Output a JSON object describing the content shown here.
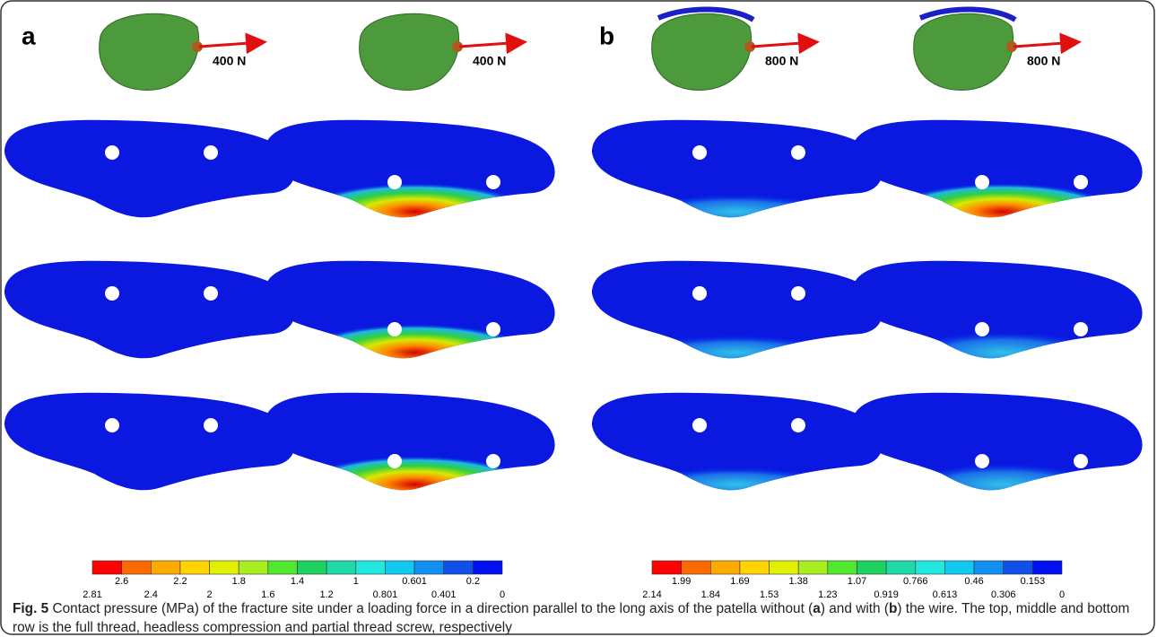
{
  "panels": [
    {
      "letter": "a",
      "forces": [
        "400 N",
        "400 N"
      ],
      "colorbar": {
        "upper_labels": [
          "2.6",
          "2.2",
          "1.8",
          "1.4",
          "1",
          "0.601",
          "0.2"
        ],
        "lower_labels": [
          "2.81",
          "2.4",
          "2",
          "1.6",
          "1.2",
          "0.801",
          "0.401",
          "0"
        ]
      }
    },
    {
      "letter": "b",
      "forces": [
        "800 N",
        "800 N"
      ],
      "colorbar": {
        "upper_labels": [
          "1.99",
          "1.69",
          "1.38",
          "1.07",
          "0.766",
          "0.46",
          "0.153"
        ],
        "lower_labels": [
          "2.14",
          "1.84",
          "1.53",
          "1.23",
          "0.919",
          "0.613",
          "0.306",
          "0"
        ]
      }
    }
  ],
  "caption": {
    "label": "Fig. 5",
    "parts": [
      " Contact pressure (MPa) of the fracture site under a loading force in a direction parallel to the long axis of the patella without (",
      "a",
      ") and with (",
      "b",
      ") the wire. The top, middle and bottom row is the full thread, headless compression and partial thread screw, respectively"
    ]
  }
}
